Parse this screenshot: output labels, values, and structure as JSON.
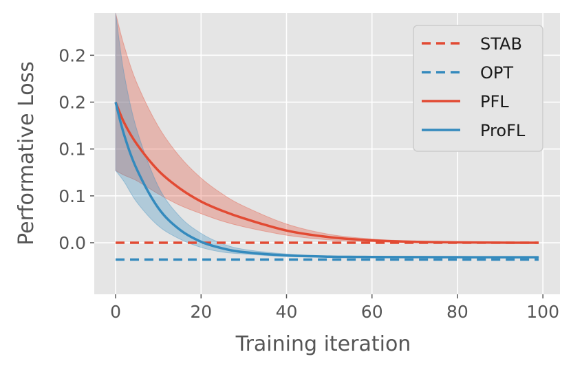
{
  "chart_data": {
    "type": "line",
    "title": "",
    "xlabel": "Training iteration",
    "ylabel": "Performative Loss",
    "xlim": [
      -5,
      104
    ],
    "ylim": [
      -0.055,
      0.245
    ],
    "grid": true,
    "legend_position": "top-right",
    "x_ticks": [
      {
        "value": 0,
        "label": "0"
      },
      {
        "value": 20,
        "label": "20"
      },
      {
        "value": 40,
        "label": "40"
      },
      {
        "value": 60,
        "label": "60"
      },
      {
        "value": 80,
        "label": "80"
      },
      {
        "value": 100,
        "label": "100"
      }
    ],
    "y_ticks": [
      {
        "value": 0.0,
        "label": "0.0"
      },
      {
        "value": 0.05,
        "label": "0.1"
      },
      {
        "value": 0.1,
        "label": "0.1"
      },
      {
        "value": 0.15,
        "label": "0.2"
      },
      {
        "value": 0.2,
        "label": "0.2"
      }
    ],
    "series": [
      {
        "name": "STAB",
        "style": "dashed",
        "color": "#e24a33",
        "x": [
          0,
          99
        ],
        "y": [
          0.0,
          0.0
        ]
      },
      {
        "name": "OPT",
        "style": "dashed",
        "color": "#348abd",
        "x": [
          0,
          99
        ],
        "y": [
          -0.018,
          -0.018
        ]
      },
      {
        "name": "PFL",
        "style": "solid",
        "color": "#e24a33",
        "x": [
          0,
          2,
          5,
          10,
          15,
          20,
          25,
          30,
          40,
          50,
          60,
          70,
          80,
          90,
          99
        ],
        "y": [
          0.15,
          0.128,
          0.105,
          0.077,
          0.058,
          0.044,
          0.034,
          0.026,
          0.013,
          0.006,
          0.0025,
          0.001,
          0.0004,
          0.0001,
          0.0
        ],
        "upper": [
          0.245,
          0.21,
          0.17,
          0.124,
          0.092,
          0.069,
          0.052,
          0.039,
          0.02,
          0.009,
          0.004,
          0.0018,
          0.0008,
          0.0003,
          0.0001
        ],
        "lower": [
          0.077,
          0.072,
          0.066,
          0.052,
          0.04,
          0.031,
          0.023,
          0.017,
          0.008,
          0.003,
          0.001,
          0.0004,
          0.0001,
          0.0,
          -0.0001
        ]
      },
      {
        "name": "ProFL",
        "style": "solid",
        "color": "#348abd",
        "x": [
          0,
          2,
          5,
          10,
          15,
          20,
          25,
          30,
          40,
          50,
          60,
          70,
          80,
          90,
          99
        ],
        "y": [
          0.15,
          0.115,
          0.078,
          0.037,
          0.014,
          0.001,
          -0.006,
          -0.01,
          -0.0135,
          -0.0148,
          -0.0152,
          -0.0153,
          -0.0154,
          -0.0155,
          -0.0155
        ],
        "upper": [
          0.245,
          0.18,
          0.12,
          0.06,
          0.028,
          0.01,
          -0.001,
          -0.007,
          -0.012,
          -0.0143,
          -0.015,
          -0.0152,
          -0.0153,
          -0.0154,
          -0.0154
        ],
        "lower": [
          0.077,
          0.065,
          0.043,
          0.018,
          0.004,
          -0.005,
          -0.01,
          -0.012,
          -0.0148,
          -0.0153,
          -0.0155,
          -0.0156,
          -0.0156,
          -0.0156,
          -0.0156
        ]
      }
    ]
  }
}
